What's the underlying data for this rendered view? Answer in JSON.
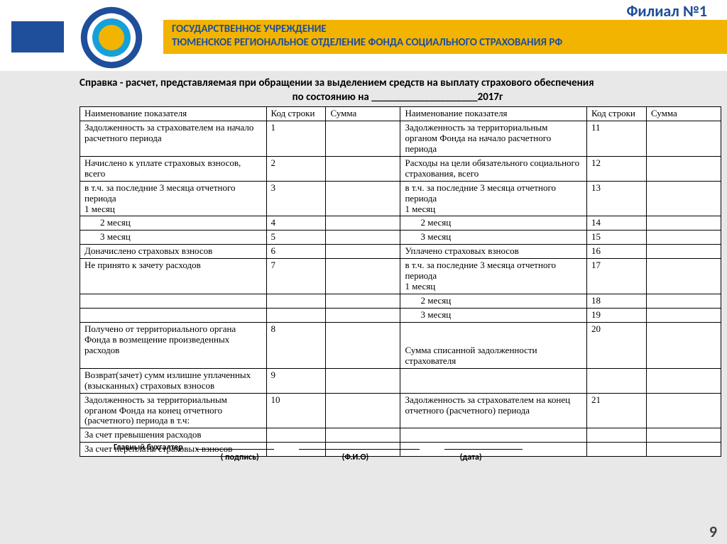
{
  "header": {
    "corner": "Филиал №1",
    "banner_line1": "ГОСУДАРСТВЕННОЕ УЧРЕЖДЕНИЕ",
    "banner_line2": "ТЮМЕНСКОЕ РЕГИОНАЛЬНОЕ ОТДЕЛЕНИЕ ФОНДА СОЦИАЛЬНОГО СТРАХОВАНИЯ РФ",
    "colors": {
      "accent_blue": "#1f4e9b",
      "banner_bg": "#f2b400"
    }
  },
  "document": {
    "title": "Справка - расчет,  представляемая при обращении за выделением средств на выплату страхового обеспечения",
    "subtitle": "по состоянию на ____________________2017г"
  },
  "table": {
    "headers": [
      "Наименование показателя",
      "Код строки",
      "Сумма",
      "Наименование показателя",
      "Код строки",
      "Сумма"
    ],
    "rows": [
      {
        "l": "Задолженность за страхователем на начало расчетного периода",
        "lc": "1",
        "ls": "",
        "r": "Задолженность за территориальным органом Фонда на начало расчетного периода",
        "rc": "11",
        "rs": ""
      },
      {
        "l": "Начислено к уплате страховых взносов, всего",
        "lc": "2",
        "ls": "",
        "r": "Расходы на цели обязательного социального страхования, всего",
        "rc": "12",
        "rs": ""
      },
      {
        "l": "в т.ч. за последние 3 месяца отчетного периода\n         1 месяц",
        "lc": "3",
        "ls": "",
        "r": "в т.ч. за последние 3 месяца отчетного периода\n         1 месяц",
        "rc": "13",
        "rs": ""
      },
      {
        "l": "2 месяц",
        "lc": "4",
        "ls": "",
        "r": "2 месяц",
        "rc": "14",
        "rs": "",
        "indent": true
      },
      {
        "l": "3 месяц",
        "lc": "5",
        "ls": "",
        "r": "3 месяц",
        "rc": "15",
        "rs": "",
        "indent": true
      },
      {
        "l": "Доначислено страховых взносов",
        "lc": "6",
        "ls": "",
        "r": "Уплачено страховых взносов",
        "rc": "16",
        "rs": ""
      },
      {
        "l": "Не принято к зачету расходов",
        "lc": "7",
        "ls": "",
        "r": "в т.ч. за последние 3 месяца отчетного периода\n         1 месяц",
        "rc": "17",
        "rs": ""
      },
      {
        "l": "",
        "lc": "",
        "ls": "",
        "r": "2 месяц",
        "rc": "18",
        "rs": "",
        "indent_r": true,
        "merge_up_l": true
      },
      {
        "l": "",
        "lc": "",
        "ls": "",
        "r": "3 месяц",
        "rc": "19",
        "rs": "",
        "indent_r": true,
        "merge_up_l": true
      },
      {
        "l": "Получено от территориального органа Фонда в возмещение произведенных расходов",
        "lc": "8",
        "ls": "",
        "r": "\n\nСумма списанной задолженности страхователя",
        "rc": "20",
        "rs": ""
      },
      {
        "l": "Возврат(зачет) сумм излишне уплаченных (взысканных) страховых взносов",
        "lc": "9",
        "ls": "",
        "r": "",
        "rc": "",
        "rs": "",
        "merge_up_r": true
      },
      {
        "l": "Задолженность за территориальным органом Фонда на конец отчетного (расчетного) периода в т.ч:",
        "lc": "10",
        "ls": "",
        "r": "Задолженность за страхователем на конец отчетного (расчетного) периода",
        "rc": "21",
        "rs": ""
      },
      {
        "l": "За счет превышения расходов",
        "lc": "",
        "ls": "",
        "r": "",
        "rc": "",
        "rs": "",
        "merge_up_r": true
      },
      {
        "l": "За счет переплаты страховых взносов",
        "lc": "",
        "ls": "",
        "r": "",
        "rc": "",
        "rs": "",
        "merge_up_r": true,
        "overlay": true
      }
    ]
  },
  "signature": {
    "role": "Главный бухгалтер",
    "labels": [
      "( подпись)",
      "(Ф.И.О)",
      "(дата)"
    ]
  },
  "slide_number": "9",
  "logo": {
    "ring_outer": "#1f4e9b",
    "ring_inner": "#ffffff",
    "core": "#f2b400",
    "accent": "#17a0d8"
  }
}
